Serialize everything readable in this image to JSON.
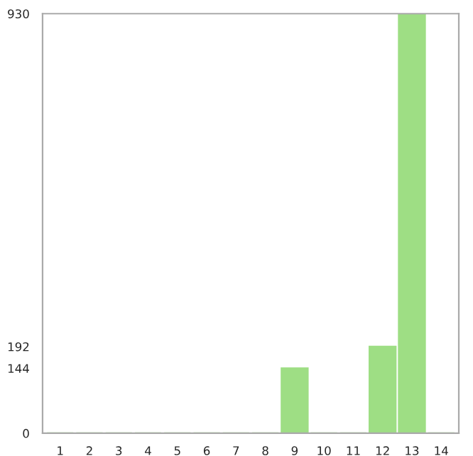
{
  "chart_data": {
    "type": "bar",
    "categories": [
      "1",
      "2",
      "3",
      "4",
      "5",
      "6",
      "7",
      "8",
      "9",
      "10",
      "11",
      "12",
      "13",
      "14"
    ],
    "values": [
      0,
      0,
      0,
      0,
      0,
      0,
      0,
      0,
      144,
      0,
      0,
      192,
      930,
      0
    ],
    "color": "#9ede84",
    "ylim": [
      0,
      930
    ],
    "yticks": [
      0,
      144,
      192,
      930
    ],
    "grid": false
  }
}
